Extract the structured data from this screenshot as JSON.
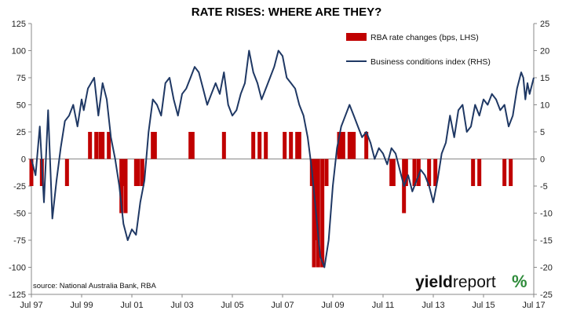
{
  "chart_data": {
    "type": "bar+line",
    "title": "RATE RISES: WHERE ARE THEY?",
    "x_tick_labels": [
      "Jul 97",
      "Jul 99",
      "Jul 01",
      "Jul 03",
      "Jul 05",
      "Jul 07",
      "Jul 09",
      "Jul 11",
      "Jul 13",
      "Jul 15",
      "Jul 17"
    ],
    "x_range": [
      "1997-07",
      "2017-07"
    ],
    "y_left": {
      "ylim": [
        -125,
        125
      ],
      "ticks": [
        "125",
        "100",
        "75",
        "50",
        "25",
        "0",
        "-25",
        "-50",
        "-75",
        "-100",
        "-125"
      ]
    },
    "y_right": {
      "ylim": [
        -25,
        25
      ],
      "ticks": [
        "25",
        "20",
        "15",
        "10",
        "5",
        "0",
        "-5",
        "-10",
        "-15",
        "-20",
        "-25"
      ]
    },
    "grid": false,
    "legend_position": "top-right",
    "colors": {
      "bars": "#c00000",
      "line": "#1f3864",
      "axis": "#888888"
    },
    "series": [
      {
        "name": "RBA rate changes (bps, LHS)",
        "type": "bar",
        "axis": "left",
        "points": [
          [
            "1997-07",
            -25
          ],
          [
            "1997-12",
            -25
          ],
          [
            "1998-12",
            -25
          ],
          [
            "1999-11",
            25
          ],
          [
            "2000-02",
            25
          ],
          [
            "2000-04",
            25
          ],
          [
            "2000-05",
            25
          ],
          [
            "2000-08",
            25
          ],
          [
            "2001-02",
            -50
          ],
          [
            "2001-03",
            -25
          ],
          [
            "2001-04",
            -50
          ],
          [
            "2001-09",
            -25
          ],
          [
            "2001-10",
            -25
          ],
          [
            "2001-12",
            -25
          ],
          [
            "2002-05",
            25
          ],
          [
            "2002-06",
            25
          ],
          [
            "2003-11",
            25
          ],
          [
            "2003-12",
            25
          ],
          [
            "2005-03",
            25
          ],
          [
            "2006-05",
            25
          ],
          [
            "2006-08",
            25
          ],
          [
            "2006-11",
            25
          ],
          [
            "2007-08",
            25
          ],
          [
            "2007-11",
            25
          ],
          [
            "2008-02",
            25
          ],
          [
            "2008-03",
            25
          ],
          [
            "2008-09",
            -25
          ],
          [
            "2008-10",
            -100
          ],
          [
            "2008-11",
            -75
          ],
          [
            "2008-12",
            -100
          ],
          [
            "2009-02",
            -100
          ],
          [
            "2009-04",
            -25
          ],
          [
            "2009-10",
            25
          ],
          [
            "2009-11",
            25
          ],
          [
            "2009-12",
            25
          ],
          [
            "2010-03",
            25
          ],
          [
            "2010-04",
            25
          ],
          [
            "2010-05",
            25
          ],
          [
            "2010-11",
            25
          ],
          [
            "2011-11",
            -25
          ],
          [
            "2011-12",
            -25
          ],
          [
            "2012-05",
            -50
          ],
          [
            "2012-06",
            -25
          ],
          [
            "2012-10",
            -25
          ],
          [
            "2012-12",
            -25
          ],
          [
            "2013-05",
            -25
          ],
          [
            "2013-08",
            -25
          ],
          [
            "2015-02",
            -25
          ],
          [
            "2015-05",
            -25
          ],
          [
            "2016-05",
            -25
          ],
          [
            "2016-08",
            -25
          ]
        ]
      },
      {
        "name": "Business conditions index (RHS)",
        "type": "line",
        "axis": "right",
        "points": [
          [
            "1997-07",
            0
          ],
          [
            "1997-09",
            -3
          ],
          [
            "1997-11",
            6
          ],
          [
            "1998-01",
            -8
          ],
          [
            "1998-03",
            9
          ],
          [
            "1998-05",
            -11
          ],
          [
            "1998-07",
            -4
          ],
          [
            "1998-09",
            2
          ],
          [
            "1998-11",
            7
          ],
          [
            "1999-01",
            8
          ],
          [
            "1999-03",
            10
          ],
          [
            "1999-05",
            6
          ],
          [
            "1999-07",
            11
          ],
          [
            "1999-08",
            9
          ],
          [
            "1999-10",
            13
          ],
          [
            "2000-01",
            15
          ],
          [
            "2000-03",
            8
          ],
          [
            "2000-05",
            14
          ],
          [
            "2000-07",
            11
          ],
          [
            "2000-09",
            4
          ],
          [
            "2000-11",
            0
          ],
          [
            "2001-01",
            -5
          ],
          [
            "2001-03",
            -12
          ],
          [
            "2001-05",
            -15
          ],
          [
            "2001-07",
            -13
          ],
          [
            "2001-09",
            -14
          ],
          [
            "2001-11",
            -8
          ],
          [
            "2002-01",
            -4
          ],
          [
            "2002-03",
            5
          ],
          [
            "2002-05",
            11
          ],
          [
            "2002-07",
            10
          ],
          [
            "2002-09",
            8
          ],
          [
            "2002-11",
            14
          ],
          [
            "2003-01",
            15
          ],
          [
            "2003-03",
            11
          ],
          [
            "2003-05",
            8
          ],
          [
            "2003-07",
            12
          ],
          [
            "2003-09",
            13
          ],
          [
            "2003-11",
            15
          ],
          [
            "2004-01",
            17
          ],
          [
            "2004-03",
            16
          ],
          [
            "2004-05",
            13
          ],
          [
            "2004-07",
            10
          ],
          [
            "2004-09",
            12
          ],
          [
            "2004-11",
            14
          ],
          [
            "2005-01",
            12
          ],
          [
            "2005-03",
            16
          ],
          [
            "2005-05",
            10
          ],
          [
            "2005-07",
            8
          ],
          [
            "2005-09",
            9
          ],
          [
            "2005-11",
            12
          ],
          [
            "2006-01",
            14
          ],
          [
            "2006-03",
            20
          ],
          [
            "2006-05",
            16
          ],
          [
            "2006-07",
            14
          ],
          [
            "2006-09",
            11
          ],
          [
            "2006-11",
            13
          ],
          [
            "2007-01",
            15
          ],
          [
            "2007-03",
            17
          ],
          [
            "2007-05",
            20
          ],
          [
            "2007-07",
            19
          ],
          [
            "2007-09",
            15
          ],
          [
            "2007-11",
            14
          ],
          [
            "2008-01",
            13
          ],
          [
            "2008-03",
            10
          ],
          [
            "2008-05",
            8
          ],
          [
            "2008-07",
            4
          ],
          [
            "2008-09",
            -2
          ],
          [
            "2008-11",
            -10
          ],
          [
            "2009-01",
            -18
          ],
          [
            "2009-03",
            -20
          ],
          [
            "2009-05",
            -15
          ],
          [
            "2009-07",
            -5
          ],
          [
            "2009-09",
            2
          ],
          [
            "2009-11",
            6
          ],
          [
            "2010-01",
            8
          ],
          [
            "2010-03",
            10
          ],
          [
            "2010-05",
            8
          ],
          [
            "2010-07",
            6
          ],
          [
            "2010-09",
            4
          ],
          [
            "2010-11",
            5
          ],
          [
            "2011-01",
            3
          ],
          [
            "2011-03",
            0
          ],
          [
            "2011-05",
            2
          ],
          [
            "2011-07",
            1
          ],
          [
            "2011-09",
            -1
          ],
          [
            "2011-11",
            2
          ],
          [
            "2012-01",
            1
          ],
          [
            "2012-03",
            -2
          ],
          [
            "2012-05",
            -5
          ],
          [
            "2012-07",
            -3
          ],
          [
            "2012-09",
            -6
          ],
          [
            "2012-11",
            -4
          ],
          [
            "2013-01",
            -2
          ],
          [
            "2013-03",
            -3
          ],
          [
            "2013-05",
            -5
          ],
          [
            "2013-07",
            -8
          ],
          [
            "2013-09",
            -4
          ],
          [
            "2013-11",
            1
          ],
          [
            "2014-01",
            3
          ],
          [
            "2014-03",
            8
          ],
          [
            "2014-05",
            4
          ],
          [
            "2014-07",
            9
          ],
          [
            "2014-09",
            10
          ],
          [
            "2014-11",
            5
          ],
          [
            "2015-01",
            6
          ],
          [
            "2015-03",
            10
          ],
          [
            "2015-05",
            8
          ],
          [
            "2015-07",
            11
          ],
          [
            "2015-09",
            10
          ],
          [
            "2015-11",
            12
          ],
          [
            "2016-01",
            11
          ],
          [
            "2016-03",
            9
          ],
          [
            "2016-05",
            10
          ],
          [
            "2016-07",
            6
          ],
          [
            "2016-09",
            8
          ],
          [
            "2016-11",
            13
          ],
          [
            "2017-01",
            16
          ],
          [
            "2017-02",
            15
          ],
          [
            "2017-03",
            11
          ],
          [
            "2017-04",
            14
          ],
          [
            "2017-05",
            12
          ],
          [
            "2017-07",
            15
          ]
        ]
      }
    ],
    "annotations": {
      "source": "source: National Australia Bank, RBA"
    }
  },
  "branding": {
    "logo_part1": "yield",
    "logo_part2": "report",
    "logo_symbol": "%"
  }
}
